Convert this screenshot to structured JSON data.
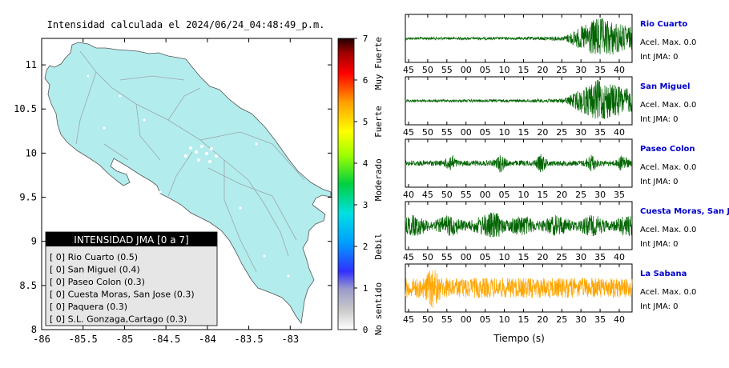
{
  "map": {
    "title": "Intensidad calculada el 2024/06/24_04:48:49_p.m.",
    "x_ticks": [
      "-86",
      "-85.5",
      "-85",
      "-84.5",
      "-84",
      "-83.5",
      "-83"
    ],
    "y_ticks": [
      "11",
      "10.5",
      "10",
      "9.5",
      "9",
      "8.5",
      "8"
    ],
    "xlim": [
      -86,
      -82.5
    ],
    "ylim": [
      8,
      11.3
    ],
    "land_color": "#b3eced",
    "legend": {
      "title": "INTENSIDAD JMA [0 a 7]",
      "items": [
        "[ 0] Rio Cuarto (0.5)",
        "[ 0] San Miguel (0.4)",
        "[ 0] Paseo Colon (0.3)",
        "[ 0] Cuesta Moras, San Jose (0.3)",
        "[ 0] Paquera (0.3)",
        "[ 0] S.L. Gonzaga,Cartago (0.3)"
      ]
    }
  },
  "colorbar": {
    "ticks": [
      "0",
      "1",
      "2",
      "3",
      "4",
      "5",
      "6",
      "7"
    ],
    "labels": [
      "No sentido",
      "Debil",
      "Moderado",
      "Fuerte",
      "Muy Fuerte"
    ],
    "range": [
      0,
      7
    ]
  },
  "chart_data": {
    "type": "line",
    "xlabel": "Tiempo (s)",
    "panels": [
      {
        "station": "Rio Cuarto",
        "acel": "Acel. Max. 0.0",
        "int": "Int JMA: 0",
        "x_ticks": [
          "45",
          "50",
          "55",
          "00",
          "05",
          "10",
          "15",
          "20",
          "25",
          "30",
          "35",
          "40"
        ],
        "color": "#006400",
        "envelope": "late-strong"
      },
      {
        "station": "San Miguel",
        "acel": "Acel. Max. 0.0",
        "int": "Int JMA: 0",
        "x_ticks": [
          "45",
          "50",
          "55",
          "00",
          "05",
          "10",
          "15",
          "20",
          "25",
          "30",
          "35",
          "40"
        ],
        "color": "#006400",
        "envelope": "late-strong"
      },
      {
        "station": "Paseo Colon",
        "acel": "Acel. Max. 0.0",
        "int": "Int JMA: 0",
        "x_ticks": [
          "40",
          "45",
          "50",
          "55",
          "00",
          "05",
          "10",
          "15",
          "20",
          "25",
          "30",
          "35"
        ],
        "color": "#006400",
        "envelope": "bursts"
      },
      {
        "station": "Cuesta Moras, San Jose",
        "acel": "Acel. Max. 0.0",
        "int": "Int JMA: 0",
        "x_ticks": [
          "45",
          "50",
          "55",
          "00",
          "05",
          "10",
          "15",
          "20",
          "25",
          "30",
          "35",
          "40"
        ],
        "color": "#006400",
        "envelope": "noisy"
      },
      {
        "station": "La Sabana",
        "acel": "Acel. Max. 0.0",
        "int": "Int JMA: 0",
        "x_ticks": [
          "45",
          "50",
          "55",
          "00",
          "05",
          "10",
          "15",
          "20",
          "25",
          "30",
          "35",
          "40"
        ],
        "color": "#ffa500",
        "envelope": "early-spike"
      }
    ]
  },
  "colors": {
    "station_label": "#0000cc",
    "legend_title_bg": "#000000",
    "legend_bg": "#e6e6e6"
  }
}
